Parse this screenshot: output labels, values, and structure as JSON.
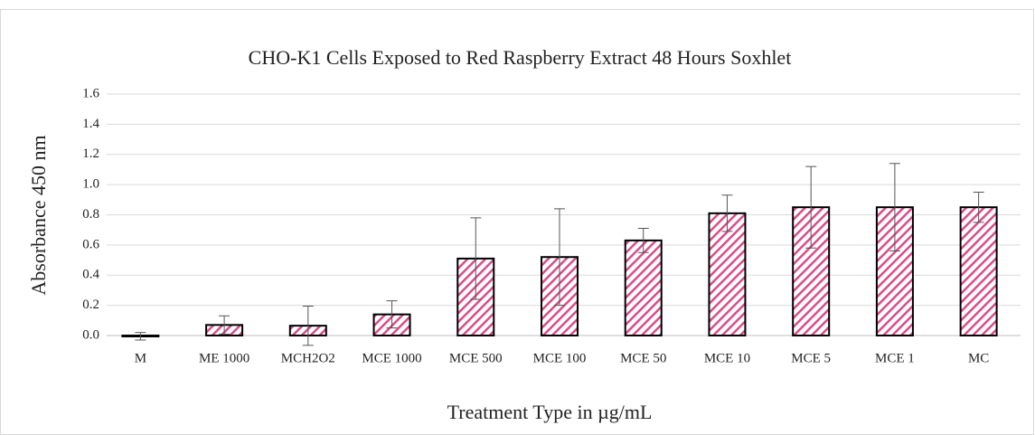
{
  "chart_data": {
    "type": "bar",
    "title": "CHO-K1  Cells Exposed to Red Raspberry Extract  48 Hours Soxhlet",
    "x_label": "Treatment Type in µg/mL",
    "y_label": "Absorbance 450 nm",
    "categories": [
      "M",
      "ME 1000",
      "MCH2O2",
      "MCE 1000",
      "MCE 500",
      "MCE 100",
      "MCE 50",
      "MCE 10",
      "MCE 5",
      "MCE 1",
      "MC"
    ],
    "values": [
      -0.005,
      0.07,
      0.065,
      0.14,
      0.51,
      0.52,
      0.63,
      0.81,
      0.85,
      0.85,
      0.85
    ],
    "errors": [
      0.025,
      0.06,
      0.13,
      0.09,
      0.27,
      0.32,
      0.08,
      0.12,
      0.27,
      0.29,
      0.1
    ],
    "color": "#dd4a8a",
    "ylim": [
      0,
      1.6
    ],
    "yticks": [
      {
        "value": 0,
        "label": "0.0"
      },
      0.2,
      0.4,
      0.6,
      0.8,
      {
        "value": 1,
        "label": "1.0"
      },
      1.2,
      1.4,
      1.6
    ],
    "grid": true
  }
}
